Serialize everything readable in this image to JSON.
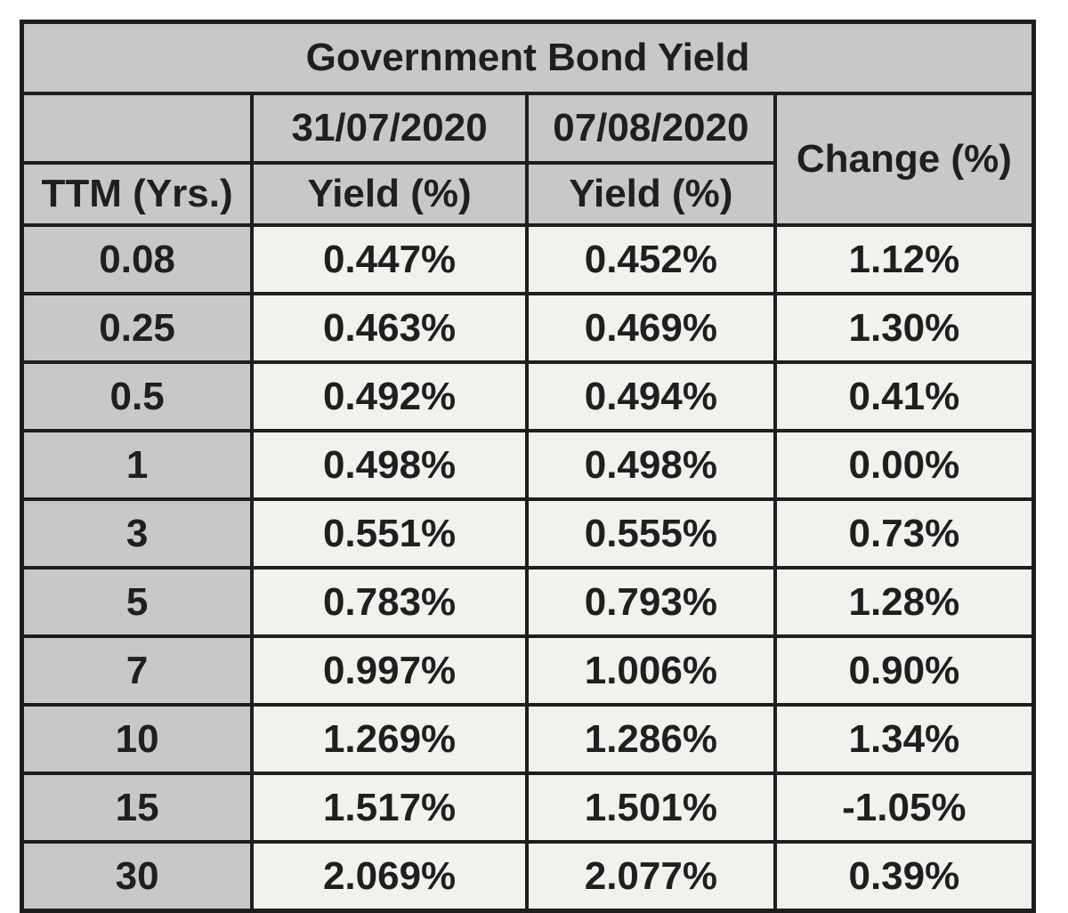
{
  "chart_data": {
    "type": "table",
    "title": "Government Bond Yield",
    "header": {
      "row_label": "TTM (Yrs.)",
      "date_prev": "31/07/2020",
      "date_curr": "07/08/2020",
      "yield_prev_label": "Yield (%)",
      "yield_curr_label": "Yield (%)",
      "change_label": "Change (%)"
    },
    "rows": [
      {
        "ttm": "0.08",
        "yield_prev": "0.447%",
        "yield_curr": "0.452%",
        "change": "1.12%"
      },
      {
        "ttm": "0.25",
        "yield_prev": "0.463%",
        "yield_curr": "0.469%",
        "change": "1.30%"
      },
      {
        "ttm": "0.5",
        "yield_prev": "0.492%",
        "yield_curr": "0.494%",
        "change": "0.41%"
      },
      {
        "ttm": "1",
        "yield_prev": "0.498%",
        "yield_curr": "0.498%",
        "change": "0.00%"
      },
      {
        "ttm": "3",
        "yield_prev": "0.551%",
        "yield_curr": "0.555%",
        "change": "0.73%"
      },
      {
        "ttm": "5",
        "yield_prev": "0.783%",
        "yield_curr": "0.793%",
        "change": "1.28%"
      },
      {
        "ttm": "7",
        "yield_prev": "0.997%",
        "yield_curr": "1.006%",
        "change": "0.90%"
      },
      {
        "ttm": "10",
        "yield_prev": "1.269%",
        "yield_curr": "1.286%",
        "change": "1.34%"
      },
      {
        "ttm": "15",
        "yield_prev": "1.517%",
        "yield_curr": "1.501%",
        "change": "-1.05%"
      },
      {
        "ttm": "30",
        "yield_prev": "2.069%",
        "yield_curr": "2.077%",
        "change": "0.39%"
      }
    ],
    "numeric": {
      "ttm_years": [
        0.08,
        0.25,
        0.5,
        1,
        3,
        5,
        7,
        10,
        15,
        30
      ],
      "series": [
        {
          "name": "31/07/2020 Yield (%)",
          "values": [
            0.447,
            0.463,
            0.492,
            0.498,
            0.551,
            0.783,
            0.997,
            1.269,
            1.517,
            2.069
          ]
        },
        {
          "name": "07/08/2020 Yield (%)",
          "values": [
            0.452,
            0.469,
            0.494,
            0.498,
            0.555,
            0.793,
            1.006,
            1.286,
            1.501,
            2.077
          ]
        },
        {
          "name": "Change (%)",
          "values": [
            1.12,
            1.3,
            0.41,
            0.0,
            0.73,
            1.28,
            0.9,
            1.34,
            -1.05,
            0.39
          ]
        }
      ]
    },
    "colors": {
      "header_bg": "#c9c8c6",
      "cell_bg": "#f2f1ee",
      "border": "#1e1e1e",
      "text": "#1f1f1f",
      "page_bg": "#fdfdfd"
    }
  }
}
